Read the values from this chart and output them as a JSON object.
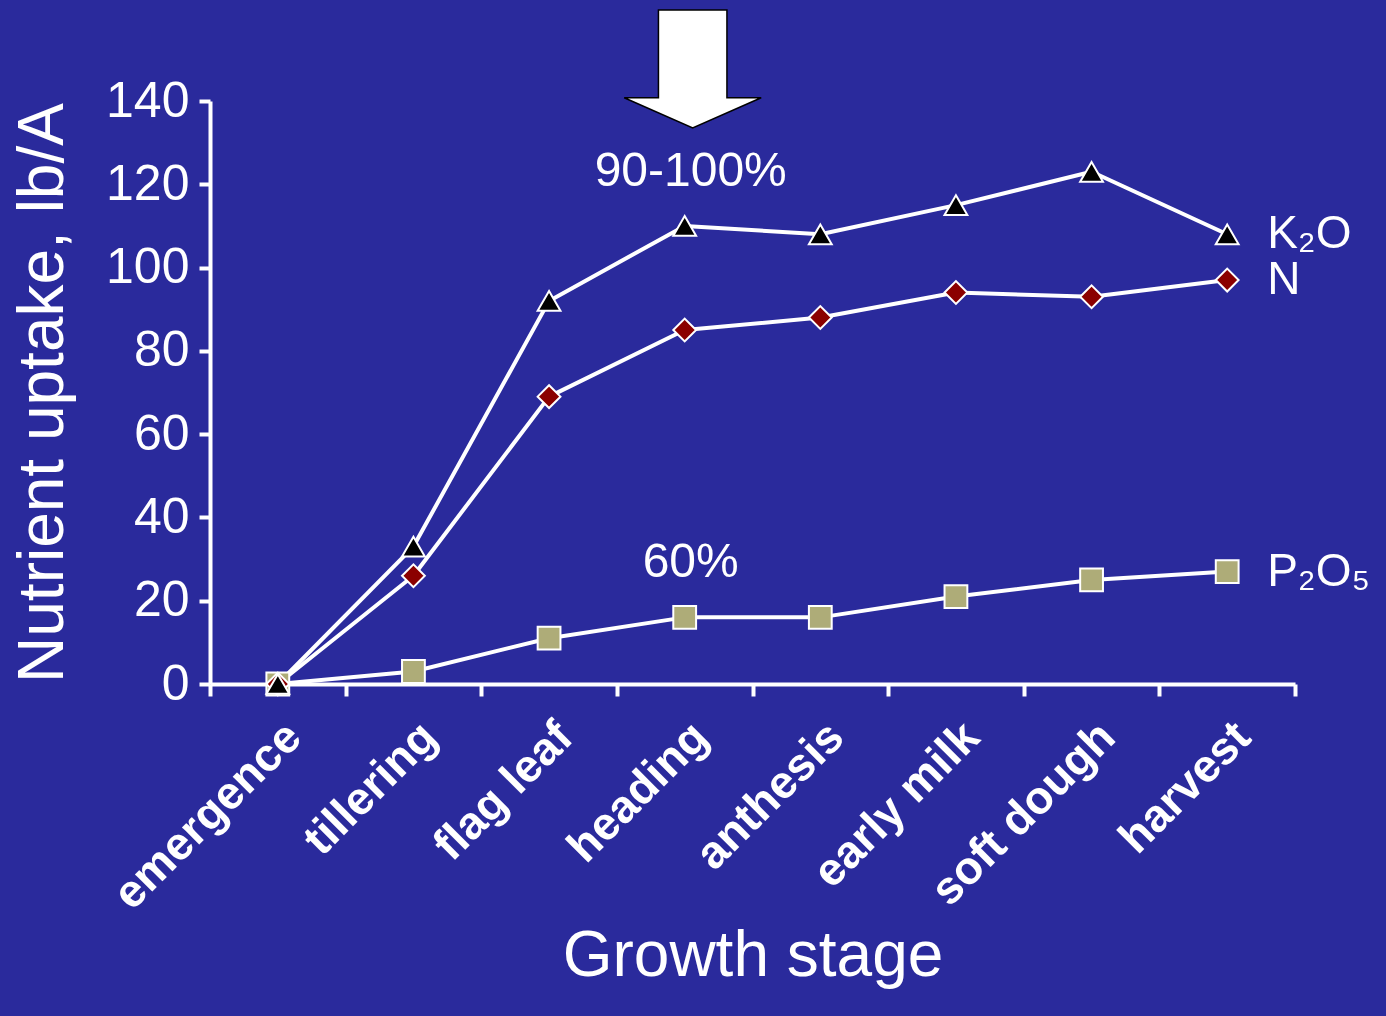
{
  "chart_data": {
    "type": "line",
    "xlabel": "Growth stage",
    "ylabel": "Nutrient uptake, lb/A",
    "categories": [
      "emergence",
      "tillering",
      "flag leaf",
      "heading",
      "anthesis",
      "early milk",
      "soft dough",
      "harvest"
    ],
    "ylim": [
      0,
      140
    ],
    "yticks": [
      0,
      20,
      40,
      60,
      80,
      100,
      120,
      140
    ],
    "grid": false,
    "line_style": "solid",
    "series": [
      {
        "name": "K₂O",
        "color": "#000000",
        "marker": "triangle",
        "values": [
          0,
          33,
          92,
          110,
          108,
          115,
          123,
          108
        ]
      },
      {
        "name": "N",
        "color": "#8b0000",
        "marker": "diamond",
        "values": [
          0,
          26,
          69,
          85,
          88,
          94,
          93,
          97
        ]
      },
      {
        "name": "P₂O₅",
        "color": "#aeac78",
        "marker": "square",
        "values": [
          0,
          3,
          11,
          16,
          16,
          21,
          25,
          27
        ]
      }
    ],
    "annotations": [
      {
        "text": "90-100%",
        "x": "heading",
        "y": 110
      },
      {
        "text": "60%",
        "x": "heading",
        "y": 16
      }
    ]
  }
}
